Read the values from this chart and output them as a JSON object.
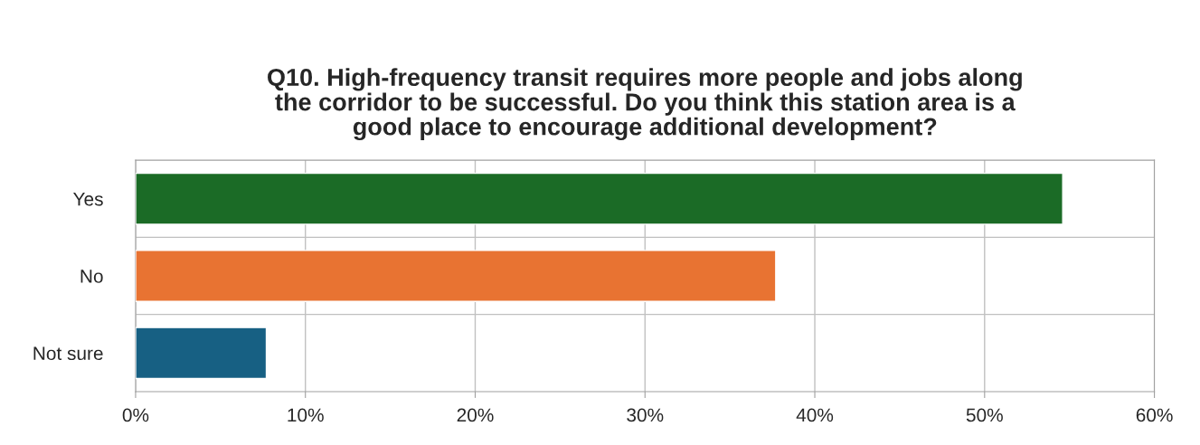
{
  "chart_data": {
    "type": "bar",
    "orientation": "horizontal",
    "title": "Q10. High-frequency transit requires more people and jobs along\nthe corridor to be successful. Do you think this station area is a\ngood place to encourage additional development?",
    "categories": [
      "Yes",
      "No",
      "Not sure"
    ],
    "values": [
      54.6,
      37.7,
      7.7
    ],
    "colors": [
      "#1b6b26",
      "#e87332",
      "#176083"
    ],
    "xlim": [
      0,
      60
    ],
    "xticks": [
      {
        "value": 0,
        "label": "0%"
      },
      {
        "value": 10,
        "label": "10%"
      },
      {
        "value": 20,
        "label": "20%"
      },
      {
        "value": 30,
        "label": "30%"
      },
      {
        "value": 40,
        "label": "40%"
      },
      {
        "value": 50,
        "label": "50%"
      },
      {
        "value": 60,
        "label": "60%"
      }
    ],
    "grid": true
  }
}
